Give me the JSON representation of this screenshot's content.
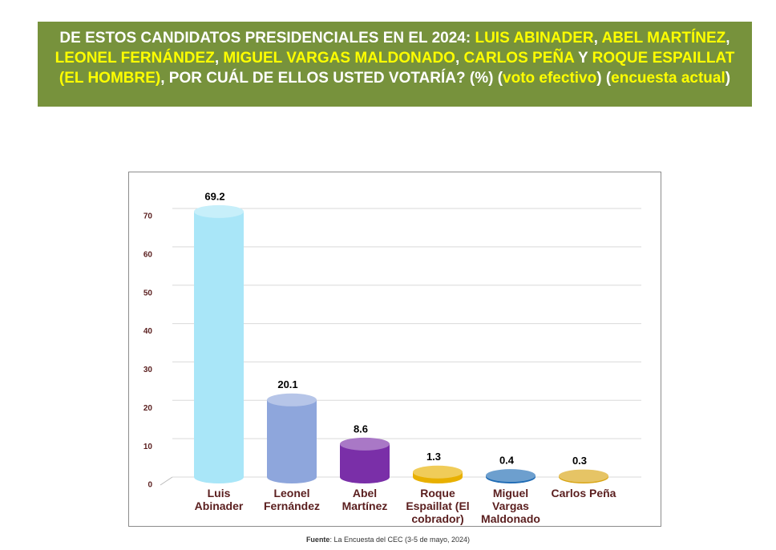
{
  "chart_data": {
    "type": "bar",
    "title_parts": [
      {
        "text": "DE ESTOS CANDIDATOS PRESIDENCIALES EN EL 2024: ",
        "color": "#ffffff"
      },
      {
        "text": "LUIS ABINADER",
        "color": "#ffff00"
      },
      {
        "text": ", ",
        "color": "#ffffff"
      },
      {
        "text": "ABEL MARTÍNEZ",
        "color": "#ffff00"
      },
      {
        "text": ", ",
        "color": "#ffffff"
      },
      {
        "text": "LEONEL FERNÁNDEZ",
        "color": "#ffff00"
      },
      {
        "text": ", ",
        "color": "#ffffff"
      },
      {
        "text": "MIGUEL VARGAS MALDONADO",
        "color": "#ffff00"
      },
      {
        "text": ", ",
        "color": "#ffffff"
      },
      {
        "text": "CARLOS PEÑA",
        "color": "#ffff00"
      },
      {
        "text": " Y ",
        "color": "#ffffff"
      },
      {
        "text": "ROQUE ESPAILLAT (EL HOMBRE)",
        "color": "#ffff00"
      },
      {
        "text": ", POR CUÁL DE ELLOS USTED VOTARÍA? (%) (",
        "color": "#ffffff"
      },
      {
        "text": "voto efectivo",
        "color": "#ffff00"
      },
      {
        "text": ") (",
        "color": "#ffffff"
      },
      {
        "text": "encuesta actual",
        "color": "#ffff00"
      },
      {
        "text": ")",
        "color": "#ffffff"
      }
    ],
    "categories": [
      "Luis Abinader",
      "Leonel Fernández",
      "Abel Martínez",
      "Roque Espaillat (El cobrador)",
      "Miguel Vargas Maldonado",
      "Carlos Peña"
    ],
    "values": [
      69.2,
      20.1,
      8.6,
      1.3,
      0.4,
      0.3
    ],
    "colors": [
      "#a9e6f8",
      "#8ea6dc",
      "#7a2fa8",
      "#e8b000",
      "#1f6bb4",
      "#d8a412"
    ],
    "ylim": [
      0,
      70
    ],
    "yticks": [
      0,
      10,
      20,
      30,
      40,
      50,
      60,
      70
    ],
    "grid": true,
    "source": {
      "label": "Fuente",
      "text": ": La Encuesta del CEC (3-5 de mayo, 2024)"
    }
  }
}
